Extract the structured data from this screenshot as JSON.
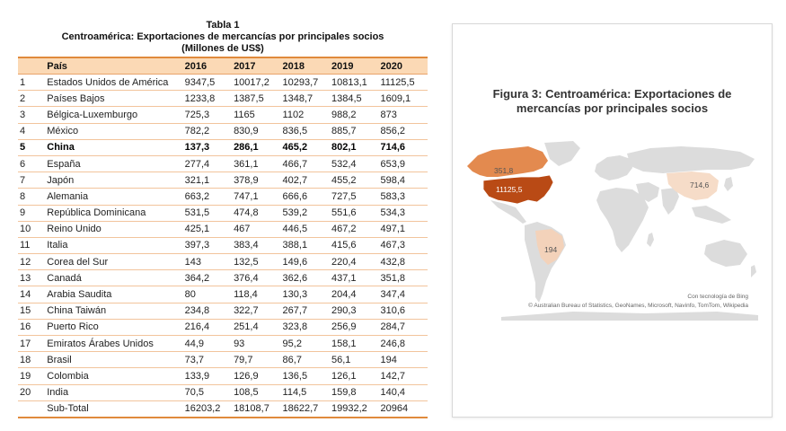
{
  "table": {
    "title": "Tabla 1",
    "subtitle": "Centroamérica: Exportaciones de mercancías por principales socios",
    "units": "(Millones de US$)",
    "headers": [
      "",
      "País",
      "2016",
      "2017",
      "2018",
      "2019",
      "2020"
    ],
    "rows": [
      [
        "1",
        "Estados Unidos de América",
        "9347,5",
        "10017,2",
        "10293,7",
        "10813,1",
        "11125,5"
      ],
      [
        "2",
        "Países Bajos",
        "1233,8",
        "1387,5",
        "1348,7",
        "1384,5",
        "1609,1"
      ],
      [
        "3",
        "Bélgica-Luxemburgo",
        "725,3",
        "1165",
        "1102",
        "988,2",
        "873"
      ],
      [
        "4",
        "México",
        "782,2",
        "830,9",
        "836,5",
        "885,7",
        "856,2"
      ],
      [
        "5",
        "China",
        "137,3",
        "286,1",
        "465,2",
        "802,1",
        "714,6"
      ],
      [
        "6",
        "España",
        "277,4",
        "361,1",
        "466,7",
        "532,4",
        "653,9"
      ],
      [
        "7",
        "Japón",
        "321,1",
        "378,9",
        "402,7",
        "455,2",
        "598,4"
      ],
      [
        "8",
        "Alemania",
        "663,2",
        "747,1",
        "666,6",
        "727,5",
        "583,3"
      ],
      [
        "9",
        "República Dominicana",
        "531,5",
        "474,8",
        "539,2",
        "551,6",
        "534,3"
      ],
      [
        "10",
        "Reino Unido",
        "425,1",
        "467",
        "446,5",
        "467,2",
        "497,1"
      ],
      [
        "11",
        "Italia",
        "397,3",
        "383,4",
        "388,1",
        "415,6",
        "467,3"
      ],
      [
        "12",
        "Corea del Sur",
        "143",
        "132,5",
        "149,6",
        "220,4",
        "432,8"
      ],
      [
        "13",
        "Canadá",
        "364,2",
        "376,4",
        "362,6",
        "437,1",
        "351,8"
      ],
      [
        "14",
        "Arabia Saudita",
        "80",
        "118,4",
        "130,3",
        "204,4",
        "347,4"
      ],
      [
        "15",
        "China Taiwán",
        "234,8",
        "322,7",
        "267,7",
        "290,3",
        "310,6"
      ],
      [
        "16",
        "Puerto Rico",
        "216,4",
        "251,4",
        "323,8",
        "256,9",
        "284,7"
      ],
      [
        "17",
        "Emiratos Árabes Unidos",
        "44,9",
        "93",
        "95,2",
        "158,1",
        "246,8"
      ],
      [
        "18",
        "Brasil",
        "73,7",
        "79,7",
        "86,7",
        "56,1",
        "194"
      ],
      [
        "19",
        "Colombia",
        "133,9",
        "126,9",
        "136,5",
        "126,1",
        "142,7"
      ],
      [
        "20",
        "India",
        "70,5",
        "108,5",
        "114,5",
        "159,8",
        "140,4"
      ],
      [
        "",
        "Sub-Total",
        "16203,2",
        "18108,7",
        "18622,7",
        "19932,2",
        "20964"
      ]
    ],
    "highlight_row": 4
  },
  "figure": {
    "title_line1": "Figura 3: Centroamérica: Exportaciones de",
    "title_line2": "mercancías por principales socios",
    "labels": {
      "usa": "11125,5",
      "canada": "351,8",
      "china": "714,6",
      "brazil": "194"
    },
    "credit_line1": "Con tecnología de Bing",
    "credit_line2": "© Australian Bureau of Statistics, GeoNames, Microsoft, Navinfo, TomTom, Wikipedia",
    "colors": {
      "usa": "#b94a15",
      "canada": "#e38a4f",
      "china": "#f6dcc8",
      "brazil": "#f3d2ba",
      "land": "#dcdcdc"
    }
  }
}
